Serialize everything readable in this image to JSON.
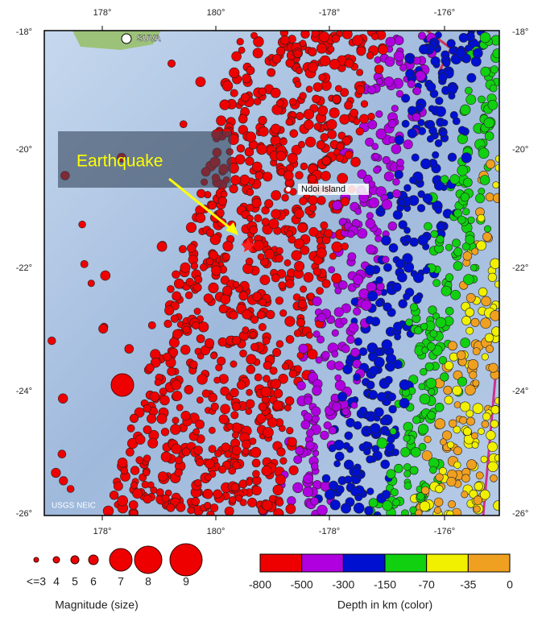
{
  "map": {
    "top_ticks": [
      "178°",
      "180°",
      "-178°",
      "-176°"
    ],
    "bottom_ticks": [
      "178°",
      "180°",
      "-178°",
      "-176°"
    ],
    "left_ticks": [
      "-18°",
      "-20°",
      "-22°",
      "-24°",
      "-26°"
    ],
    "right_ticks": [
      "-18°",
      "-20°",
      "-22°",
      "-24°",
      "-26°"
    ],
    "places": [
      "SUVA",
      "Ndoi Island"
    ],
    "annotation": "Earthquake",
    "credit": "USGS NEIC"
  },
  "magnitude_legend": {
    "labels": [
      "<=3",
      "4",
      "5",
      "6",
      "7",
      "8",
      "9"
    ],
    "title": "Magnitude (size)"
  },
  "depth_legend": {
    "labels": [
      "-800",
      "-500",
      "-300",
      "-150",
      "-70",
      "-35",
      "0"
    ],
    "colors": [
      "#ee0000",
      "#b000e0",
      "#0010d0",
      "#10d010",
      "#f0f000",
      "#f0a020"
    ],
    "title": "Depth in km (color)"
  }
}
